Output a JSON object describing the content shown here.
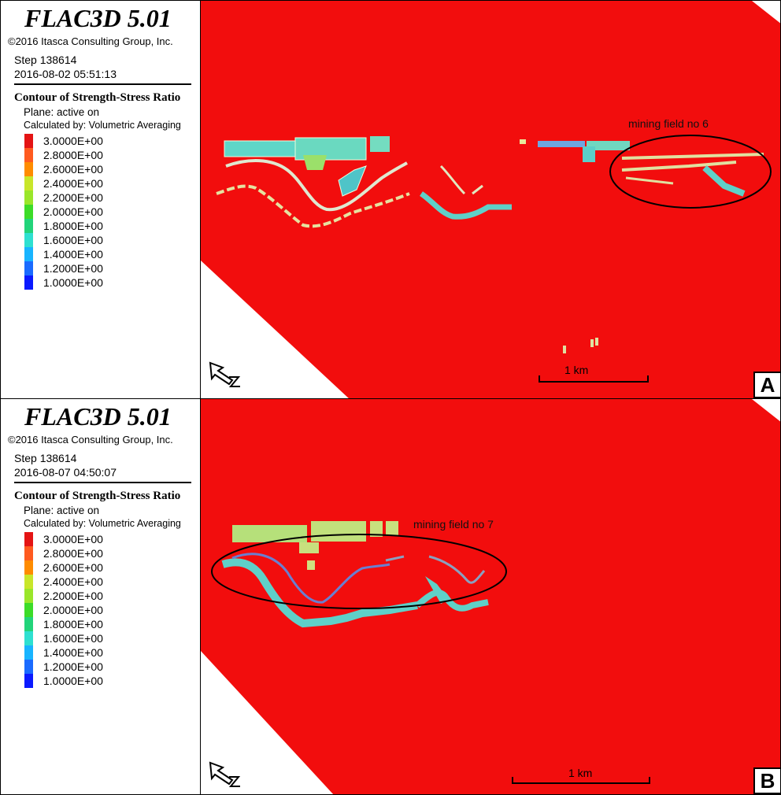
{
  "colors": {
    "model_fill": "#f20d0d",
    "background": "#ffffff",
    "scale_colors": [
      "#e41414",
      "#ff5a1f",
      "#ff8c00",
      "#c8e62a",
      "#9ae62a",
      "#3cdc28",
      "#22d47a",
      "#2ee0d0",
      "#18b4ff",
      "#1a6bff",
      "#0a1aff"
    ]
  },
  "panels": [
    {
      "id": "A",
      "title": "FLAC3D 5.01",
      "copyright": "©2016 Itasca Consulting Group, Inc.",
      "step": "Step 138614",
      "date": "2016-08-02 05:51:13",
      "contour_title": "Contour of Strength-Stress Ratio",
      "plane": "Plane: active on",
      "calculated_by": "Calculated by: Volumetric Averaging",
      "scale_values": [
        "3.0000E+00",
        "2.8000E+00",
        "2.6000E+00",
        "2.4000E+00",
        "2.2000E+00",
        "2.0000E+00",
        "1.8000E+00",
        "1.6000E+00",
        "1.4000E+00",
        "1.2000E+00",
        "1.0000E+00"
      ],
      "annotation": "mining field no 6",
      "scale_bar": "1 km",
      "letter": "A"
    },
    {
      "id": "B",
      "title": "FLAC3D 5.01",
      "copyright": "©2016 Itasca Consulting Group, Inc.",
      "step": "Step 138614",
      "date": "2016-08-07 04:50:07",
      "contour_title": "Contour of Strength-Stress Ratio",
      "plane": "Plane: active on",
      "calculated_by": "Calculated by: Volumetric Averaging",
      "scale_values": [
        "3.0000E+00",
        "2.8000E+00",
        "2.6000E+00",
        "2.4000E+00",
        "2.2000E+00",
        "2.0000E+00",
        "1.8000E+00",
        "1.6000E+00",
        "1.4000E+00",
        "1.2000E+00",
        "1.0000E+00"
      ],
      "annotation": "mining field no 7",
      "scale_bar": "1 km",
      "letter": "B"
    }
  ]
}
